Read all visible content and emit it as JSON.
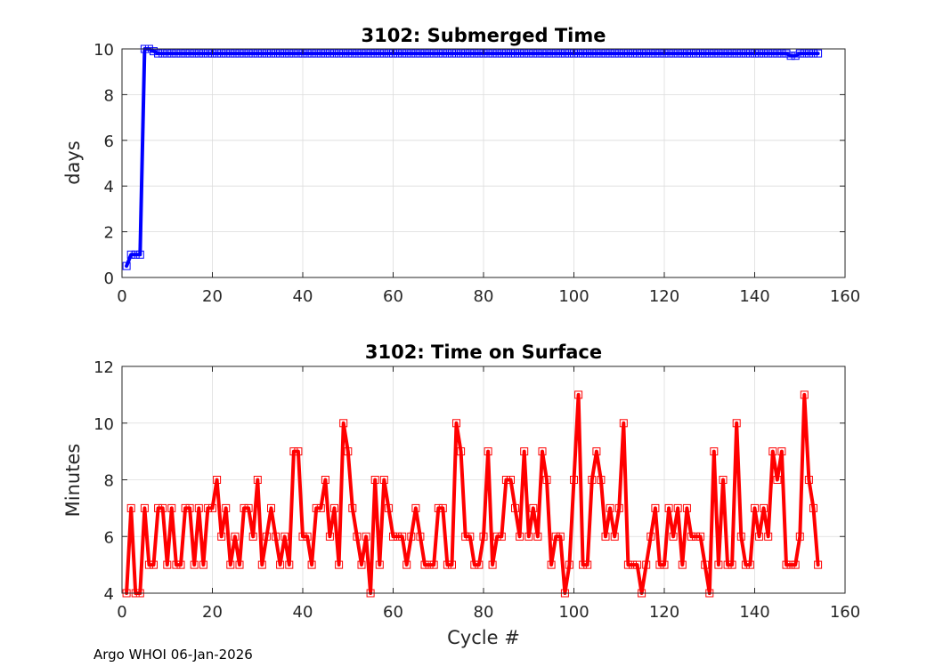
{
  "footer": "Argo WHOI 06-Jan-2026",
  "chart_data": [
    {
      "type": "line",
      "title": "3102: Submerged Time",
      "xlabel": "",
      "ylabel": "days",
      "xlim": [
        0,
        160
      ],
      "ylim": [
        0,
        10
      ],
      "xticks": [
        0,
        20,
        40,
        60,
        80,
        100,
        120,
        140,
        160
      ],
      "yticks": [
        0,
        2,
        4,
        6,
        8,
        10
      ],
      "grid": true,
      "color": "#0000ff",
      "marker": "square",
      "series": [
        {
          "name": "Submerged Time",
          "x": [
            1,
            2,
            3,
            4,
            5,
            6,
            7,
            8,
            9,
            10,
            11,
            12,
            13,
            14,
            15,
            16,
            17,
            18,
            19,
            20,
            21,
            22,
            23,
            24,
            25,
            26,
            27,
            28,
            29,
            30,
            31,
            32,
            33,
            34,
            35,
            36,
            37,
            38,
            39,
            40,
            41,
            42,
            43,
            44,
            45,
            46,
            47,
            48,
            49,
            50,
            51,
            52,
            53,
            54,
            55,
            56,
            57,
            58,
            59,
            60,
            61,
            62,
            63,
            64,
            65,
            66,
            67,
            68,
            69,
            70,
            71,
            72,
            73,
            74,
            75,
            76,
            77,
            78,
            79,
            80,
            81,
            82,
            83,
            84,
            85,
            86,
            87,
            88,
            89,
            90,
            91,
            92,
            93,
            94,
            95,
            96,
            97,
            98,
            99,
            100,
            101,
            102,
            103,
            104,
            105,
            106,
            107,
            108,
            109,
            110,
            111,
            112,
            113,
            114,
            115,
            116,
            117,
            118,
            119,
            120,
            121,
            122,
            123,
            124,
            125,
            126,
            127,
            128,
            129,
            130,
            131,
            132,
            133,
            134,
            135,
            136,
            137,
            138,
            139,
            140,
            141,
            142,
            143,
            144,
            145,
            146,
            147,
            148,
            149,
            150,
            151,
            152,
            153,
            154
          ],
          "values": [
            0.5,
            1.0,
            1.0,
            1.0,
            10.0,
            10.0,
            9.9,
            9.8,
            9.8,
            9.8,
            9.8,
            9.8,
            9.8,
            9.8,
            9.8,
            9.8,
            9.8,
            9.8,
            9.8,
            9.8,
            9.8,
            9.8,
            9.8,
            9.8,
            9.8,
            9.8,
            9.8,
            9.8,
            9.8,
            9.8,
            9.8,
            9.8,
            9.8,
            9.8,
            9.8,
            9.8,
            9.8,
            9.8,
            9.8,
            9.8,
            9.8,
            9.8,
            9.8,
            9.8,
            9.8,
            9.8,
            9.8,
            9.8,
            9.8,
            9.8,
            9.8,
            9.8,
            9.8,
            9.8,
            9.8,
            9.8,
            9.8,
            9.8,
            9.8,
            9.8,
            9.8,
            9.8,
            9.8,
            9.8,
            9.8,
            9.8,
            9.8,
            9.8,
            9.8,
            9.8,
            9.8,
            9.8,
            9.8,
            9.8,
            9.8,
            9.8,
            9.8,
            9.8,
            9.8,
            9.8,
            9.8,
            9.8,
            9.8,
            9.8,
            9.8,
            9.8,
            9.8,
            9.8,
            9.8,
            9.8,
            9.8,
            9.8,
            9.8,
            9.8,
            9.8,
            9.8,
            9.8,
            9.8,
            9.8,
            9.8,
            9.8,
            9.8,
            9.8,
            9.8,
            9.8,
            9.8,
            9.8,
            9.8,
            9.8,
            9.8,
            9.8,
            9.8,
            9.8,
            9.8,
            9.8,
            9.8,
            9.8,
            9.8,
            9.8,
            9.8,
            9.8,
            9.8,
            9.8,
            9.8,
            9.8,
            9.8,
            9.8,
            9.8,
            9.8,
            9.8,
            9.8,
            9.8,
            9.8,
            9.8,
            9.8,
            9.8,
            9.8,
            9.8,
            9.8,
            9.8,
            9.8,
            9.8,
            9.8,
            9.8,
            9.8,
            9.8,
            9.8,
            9.7,
            9.7,
            9.8,
            9.8,
            9.8,
            9.8,
            9.8
          ]
        }
      ]
    },
    {
      "type": "line",
      "title": "3102: Time on Surface",
      "xlabel": "Cycle #",
      "ylabel": "Minutes",
      "xlim": [
        0,
        160
      ],
      "ylim": [
        4,
        12
      ],
      "xticks": [
        0,
        20,
        40,
        60,
        80,
        100,
        120,
        140,
        160
      ],
      "yticks": [
        4,
        6,
        8,
        10,
        12
      ],
      "grid": true,
      "color": "#ff0000",
      "marker": "square",
      "series": [
        {
          "name": "Time on Surface",
          "x": [
            1,
            2,
            3,
            4,
            5,
            6,
            7,
            8,
            9,
            10,
            11,
            12,
            13,
            14,
            15,
            16,
            17,
            18,
            19,
            20,
            21,
            22,
            23,
            24,
            25,
            26,
            27,
            28,
            29,
            30,
            31,
            32,
            33,
            34,
            35,
            36,
            37,
            38,
            39,
            40,
            41,
            42,
            43,
            44,
            45,
            46,
            47,
            48,
            49,
            50,
            51,
            52,
            53,
            54,
            55,
            56,
            57,
            58,
            59,
            60,
            61,
            62,
            63,
            64,
            65,
            66,
            67,
            68,
            69,
            70,
            71,
            72,
            73,
            74,
            75,
            76,
            77,
            78,
            79,
            80,
            81,
            82,
            83,
            84,
            85,
            86,
            87,
            88,
            89,
            90,
            91,
            92,
            93,
            94,
            95,
            96,
            97,
            98,
            99,
            100,
            101,
            102,
            103,
            104,
            105,
            106,
            107,
            108,
            109,
            110,
            111,
            112,
            113,
            114,
            115,
            116,
            117,
            118,
            119,
            120,
            121,
            122,
            123,
            124,
            125,
            126,
            127,
            128,
            129,
            130,
            131,
            132,
            133,
            134,
            135,
            136,
            137,
            138,
            139,
            140,
            141,
            142,
            143,
            144,
            145,
            146,
            147,
            148,
            149,
            150,
            151,
            152,
            153,
            154
          ],
          "values": [
            4,
            7,
            4,
            4,
            7,
            5,
            5,
            7,
            7,
            5,
            7,
            5,
            5,
            7,
            7,
            5,
            7,
            5,
            7,
            7,
            8,
            6,
            7,
            5,
            6,
            5,
            7,
            7,
            6,
            8,
            5,
            6,
            7,
            6,
            5,
            6,
            5,
            9,
            9,
            6,
            6,
            5,
            7,
            7,
            8,
            6,
            7,
            5,
            10,
            9,
            7,
            6,
            5,
            6,
            4,
            8,
            5,
            8,
            7,
            6,
            6,
            6,
            5,
            6,
            7,
            6,
            5,
            5,
            5,
            7,
            7,
            5,
            5,
            10,
            9,
            6,
            6,
            5,
            5,
            6,
            9,
            5,
            6,
            6,
            8,
            8,
            7,
            6,
            9,
            6,
            7,
            6,
            9,
            8,
            5,
            6,
            6,
            4,
            5,
            8,
            11,
            5,
            5,
            8,
            9,
            8,
            6,
            7,
            6,
            7,
            10,
            5,
            5,
            5,
            4,
            5,
            6,
            7,
            5,
            5,
            7,
            6,
            7,
            5,
            7,
            6,
            6,
            6,
            5,
            4,
            9,
            5,
            8,
            5,
            5,
            10,
            6,
            5,
            5,
            7,
            6,
            7,
            6,
            9,
            8,
            9,
            5,
            5,
            5,
            6,
            11,
            8,
            7,
            5
          ]
        }
      ]
    }
  ]
}
